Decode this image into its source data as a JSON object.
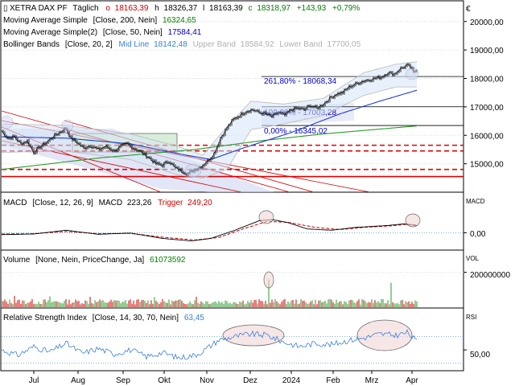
{
  "header": {
    "instrument": "XETRA DAX PF",
    "timeframe": "Täglich",
    "open_label": "o",
    "open": "18163,39",
    "high_label": "h",
    "high": "18326,37",
    "low_label": "l",
    "low": "18163,39",
    "close_label": "c",
    "close": "18318,97",
    "change": "+143,93",
    "change_pct": "+0,79%",
    "change_color": "#008000"
  },
  "indicators": {
    "sma200": {
      "label": "Moving Average Simple",
      "params": "[Close, 200, Nein]",
      "value": "16324,65",
      "value_color": "#008000"
    },
    "sma50": {
      "label": "Moving Average Simple(2)",
      "params": "[Close, 50, Nein]",
      "value": "17584,41",
      "value_color": "#0000cc"
    },
    "bollinger": {
      "label": "Bollinger Bands",
      "params": "[Close, 20, 2]",
      "mid_label": "Mid Line",
      "mid": "18142,48",
      "upper_label": "Upper Band",
      "upper": "18584,92",
      "lower_label": "Lower Band",
      "lower": "17700,05"
    }
  },
  "fib_levels": [
    {
      "label": "261,80% - 18068,34",
      "price": 18068.34
    },
    {
      "label": "100,00% - 17003,28",
      "price": 17003.28
    },
    {
      "label": "0,00% - 16345,02",
      "price": 16345.02
    }
  ],
  "support_levels": [
    15650,
    15450,
    14800,
    14550
  ],
  "macd_panel": {
    "label": "MACD",
    "params": "[Close, 12, 26, 9]",
    "macd_label": "MACD",
    "macd": "223,26",
    "trigger_label": "Trigger",
    "trigger": "249,20",
    "side_label": "MACD",
    "tick": "0,00"
  },
  "volume_panel": {
    "label": "Volume",
    "params": "[None, Nein, PriceChange, Ja]",
    "value": "61073592",
    "side_label": "VOL",
    "tick": "200000000"
  },
  "rsi_panel": {
    "label": "Relative Strength Index",
    "params": "[Close, 14, 30, 70, Nein]",
    "value": "63,45",
    "side_label": "RSI",
    "tick": "50,00"
  },
  "euro_sign": "€",
  "chart_data": {
    "type": "line",
    "price_axis": {
      "ticks": [
        15000,
        16000,
        17000,
        18000,
        19000,
        20000
      ],
      "tick_labels": [
        "15000,00",
        "16000,00",
        "17000,00",
        "18000,00",
        "19000,00",
        "20000,00"
      ],
      "range": [
        14000,
        20700
      ]
    },
    "x_labels": [
      "Jul",
      "Aug",
      "Sep",
      "Okt",
      "Nov",
      "Dez",
      "2024",
      "Feb",
      "Mrz",
      "Apr"
    ],
    "price_keypoints": [
      [
        0,
        16150
      ],
      [
        4,
        15900
      ],
      [
        8,
        15950
      ],
      [
        12,
        15700
      ],
      [
        16,
        15800
      ],
      [
        20,
        15400
      ],
      [
        24,
        15600
      ],
      [
        28,
        15750
      ],
      [
        32,
        15950
      ],
      [
        36,
        16100
      ],
      [
        40,
        16250
      ],
      [
        43,
        15900
      ],
      [
        47,
        15750
      ],
      [
        51,
        15550
      ],
      [
        55,
        15650
      ],
      [
        60,
        15500
      ],
      [
        65,
        15600
      ],
      [
        70,
        15450
      ],
      [
        74,
        15600
      ],
      [
        78,
        15700
      ],
      [
        82,
        15550
      ],
      [
        87,
        15400
      ],
      [
        92,
        15200
      ],
      [
        96,
        15000
      ],
      [
        100,
        14950
      ],
      [
        104,
        15100
      ],
      [
        108,
        14850
      ],
      [
        112,
        14750
      ],
      [
        116,
        14650
      ],
      [
        120,
        14800
      ],
      [
        124,
        14900
      ],
      [
        128,
        15100
      ],
      [
        132,
        15350
      ],
      [
        136,
        15900
      ],
      [
        140,
        16250
      ],
      [
        144,
        16550
      ],
      [
        148,
        16700
      ],
      [
        152,
        16850
      ],
      [
        156,
        16900
      ],
      [
        160,
        16800
      ],
      [
        164,
        16750
      ],
      [
        168,
        16650
      ],
      [
        172,
        16800
      ],
      [
        176,
        16700
      ],
      [
        180,
        16900
      ],
      [
        184,
        16950
      ],
      [
        188,
        16900
      ],
      [
        192,
        17050
      ],
      [
        196,
        16950
      ],
      [
        200,
        17100
      ],
      [
        204,
        17300
      ],
      [
        208,
        17450
      ],
      [
        212,
        17500
      ],
      [
        216,
        17700
      ],
      [
        220,
        17800
      ],
      [
        224,
        17900
      ],
      [
        228,
        17950
      ],
      [
        232,
        18000
      ],
      [
        236,
        18050
      ],
      [
        240,
        18200
      ],
      [
        244,
        18150
      ],
      [
        248,
        18350
      ],
      [
        252,
        18450
      ],
      [
        254,
        18400
      ],
      [
        256,
        18200
      ],
      [
        258,
        18320
      ]
    ],
    "sma200_keypoints": [
      [
        0,
        14800
      ],
      [
        60,
        15200
      ],
      [
        120,
        15500
      ],
      [
        160,
        15800
      ],
      [
        200,
        16050
      ],
      [
        258,
        16330
      ]
    ],
    "sma50_keypoints": [
      [
        0,
        15950
      ],
      [
        40,
        15900
      ],
      [
        80,
        15700
      ],
      [
        110,
        15350
      ],
      [
        130,
        15150
      ],
      [
        150,
        15550
      ],
      [
        180,
        16100
      ],
      [
        210,
        16750
      ],
      [
        235,
        17200
      ],
      [
        258,
        17584
      ]
    ],
    "bb_upper_keypoints": [
      [
        0,
        16400
      ],
      [
        40,
        16350
      ],
      [
        80,
        16050
      ],
      [
        110,
        15600
      ],
      [
        125,
        15300
      ],
      [
        140,
        16300
      ],
      [
        155,
        17200
      ],
      [
        175,
        17100
      ],
      [
        200,
        17300
      ],
      [
        225,
        18200
      ],
      [
        245,
        18500
      ],
      [
        258,
        18585
      ]
    ],
    "bb_lower_keypoints": [
      [
        0,
        15400
      ],
      [
        40,
        15450
      ],
      [
        80,
        15150
      ],
      [
        110,
        14600
      ],
      [
        125,
        14500
      ],
      [
        140,
        14800
      ],
      [
        155,
        16200
      ],
      [
        175,
        16400
      ],
      [
        200,
        16700
      ],
      [
        225,
        17400
      ],
      [
        245,
        17700
      ],
      [
        258,
        17700
      ]
    ],
    "macd": {
      "range": [
        -500,
        700
      ],
      "ticks": [
        0
      ],
      "macd_keypoints": [
        [
          0,
          -60
        ],
        [
          20,
          -40
        ],
        [
          40,
          80
        ],
        [
          60,
          -50
        ],
        [
          80,
          -10
        ],
        [
          100,
          -180
        ],
        [
          118,
          -260
        ],
        [
          130,
          -180
        ],
        [
          145,
          80
        ],
        [
          160,
          380
        ],
        [
          168,
          420
        ],
        [
          178,
          320
        ],
        [
          190,
          120
        ],
        [
          205,
          80
        ],
        [
          220,
          170
        ],
        [
          240,
          230
        ],
        [
          250,
          280
        ],
        [
          258,
          223
        ]
      ],
      "trigger_keypoints": [
        [
          0,
          -40
        ],
        [
          20,
          -30
        ],
        [
          40,
          40
        ],
        [
          60,
          -30
        ],
        [
          80,
          -20
        ],
        [
          100,
          -140
        ],
        [
          120,
          -230
        ],
        [
          135,
          -150
        ],
        [
          150,
          120
        ],
        [
          165,
          360
        ],
        [
          178,
          330
        ],
        [
          195,
          170
        ],
        [
          210,
          100
        ],
        [
          225,
          170
        ],
        [
          242,
          220
        ],
        [
          252,
          270
        ],
        [
          258,
          249
        ]
      ]
    },
    "volume": {
      "range": [
        0,
        240000000
      ],
      "ticks": [
        200000000
      ],
      "spikes": [
        [
          8,
          65000000
        ],
        [
          30,
          62000000
        ],
        [
          55,
          60000000
        ],
        [
          95,
          58000000
        ],
        [
          121,
          60000000
        ],
        [
          166,
          160000000
        ],
        [
          242,
          140000000
        ]
      ],
      "base": 35000000
    },
    "rsi": {
      "range": [
        20,
        90
      ],
      "ticks": [
        50
      ],
      "levels": [
        70,
        30
      ],
      "keypoints": [
        [
          0,
          50
        ],
        [
          10,
          42
        ],
        [
          20,
          55
        ],
        [
          30,
          47
        ],
        [
          40,
          60
        ],
        [
          50,
          45
        ],
        [
          60,
          52
        ],
        [
          70,
          44
        ],
        [
          80,
          50
        ],
        [
          90,
          40
        ],
        [
          100,
          46
        ],
        [
          110,
          38
        ],
        [
          120,
          42
        ],
        [
          125,
          48
        ],
        [
          135,
          65
        ],
        [
          145,
          70
        ],
        [
          155,
          74
        ],
        [
          165,
          72
        ],
        [
          175,
          62
        ],
        [
          185,
          55
        ],
        [
          195,
          60
        ],
        [
          205,
          58
        ],
        [
          215,
          64
        ],
        [
          225,
          68
        ],
        [
          235,
          74
        ],
        [
          245,
          72
        ],
        [
          252,
          76
        ],
        [
          258,
          63
        ]
      ]
    }
  }
}
